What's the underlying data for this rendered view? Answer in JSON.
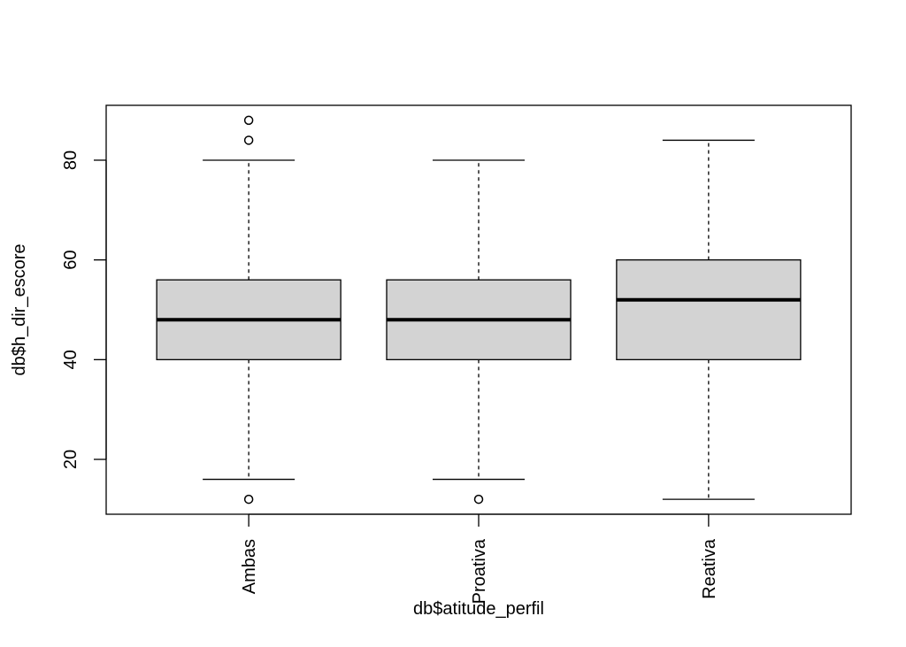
{
  "chart_data": {
    "type": "boxplot",
    "xlabel": "db$atitude_perfil",
    "ylabel": "db$h_dir_escore",
    "categories": [
      "Ambas",
      "Proativa",
      "Reativa"
    ],
    "ylim": [
      9,
      91
    ],
    "yticks": [
      20,
      40,
      60,
      80
    ],
    "ytick_labels": [
      "20",
      "40",
      "60",
      "80"
    ],
    "grid": false,
    "box_fill": "#d3d3d3",
    "boxes": [
      {
        "category": "Ambas",
        "whisker_low": 16,
        "q1": 40,
        "median": 48,
        "q3": 56,
        "whisker_high": 80,
        "outliers": [
          12,
          84,
          88
        ]
      },
      {
        "category": "Proativa",
        "whisker_low": 16,
        "q1": 40,
        "median": 48,
        "q3": 56,
        "whisker_high": 80,
        "outliers": [
          12
        ]
      },
      {
        "category": "Reativa",
        "whisker_low": 12,
        "q1": 40,
        "median": 52,
        "q3": 60,
        "whisker_high": 84,
        "outliers": []
      }
    ]
  }
}
